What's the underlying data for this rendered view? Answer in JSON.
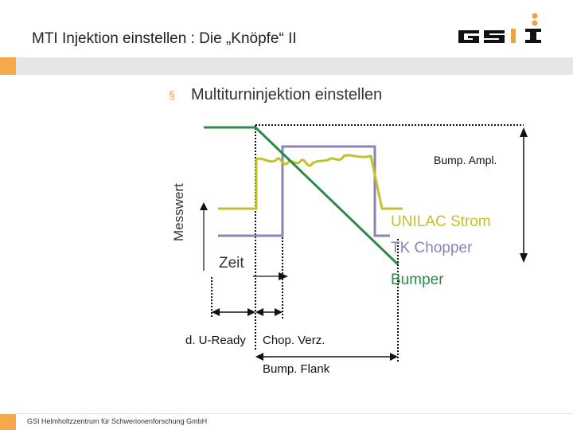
{
  "header": {
    "title": "MTI Injektion einstellen : Die „Knöpfe“ II"
  },
  "subtitle": {
    "bullet": "§",
    "text": "Multiturninjektion einstellen"
  },
  "diagram": {
    "y_axis_label": "Messwert",
    "x_axis_label": "Zeit",
    "bump_ampl_label": "Bump. Ampl.",
    "legend": {
      "unilac": "UNILAC Strom",
      "chopper": "TK Chopper",
      "bumper": "Bumper"
    },
    "timings": {
      "du_ready": "d. U-Ready",
      "chop_verz": "Chop. Verz.",
      "bump_flank": "Bump. Flank"
    },
    "colors": {
      "unilac": "#c4c02a",
      "chopper": "#8a84b4",
      "bumper": "#2e8a4a"
    }
  },
  "footer": {
    "text": "GSI Helmholtzzentrum für Schwerionenforschung GmbH"
  }
}
